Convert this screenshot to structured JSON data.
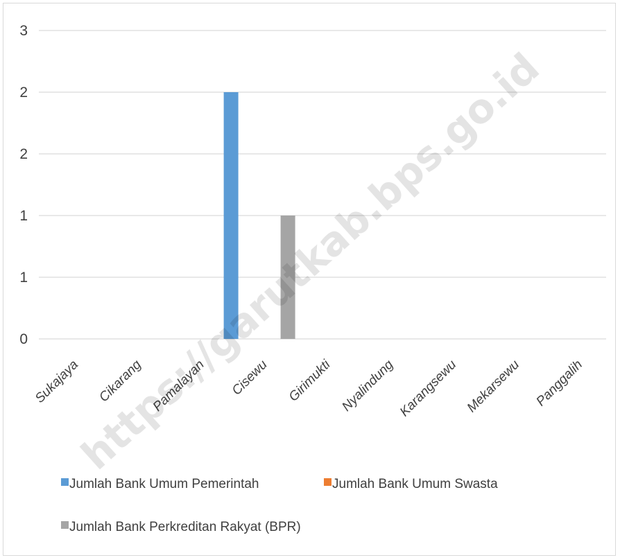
{
  "chart_data": {
    "type": "bar",
    "categories": [
      "Sukajaya",
      "Cikarang",
      "Pamalayan",
      "Cisewu",
      "Girimukti",
      "Nyalindung",
      "Karangsewu",
      "Mekarsewu",
      "Panggalih"
    ],
    "series": [
      {
        "name": "Jumlah Bank Umum Pemerintah",
        "color": "#5b9bd5",
        "values": [
          0,
          0,
          0,
          2,
          0,
          0,
          0,
          0,
          0
        ]
      },
      {
        "name": "Jumlah Bank Umum Swasta",
        "color": "#ed7d31",
        "values": [
          0,
          0,
          0,
          0,
          0,
          0,
          0,
          0,
          0
        ]
      },
      {
        "name": "Jumlah Bank Perkreditan Rakyat (BPR)",
        "color": "#a5a5a5",
        "values": [
          0,
          0,
          0,
          1,
          0,
          0,
          0,
          0,
          0
        ]
      }
    ],
    "ylim": [
      0,
      2.5
    ],
    "y_ticks": [
      0,
      0.5,
      1,
      1.5,
      2,
      2.5
    ],
    "y_tick_labels": [
      "0",
      "1",
      "1",
      "2",
      "2",
      "3"
    ],
    "grid": true,
    "legend_position": "bottom",
    "title": "",
    "xlabel": "",
    "ylabel": ""
  },
  "watermark": "https://garutkab.bps.go.id"
}
